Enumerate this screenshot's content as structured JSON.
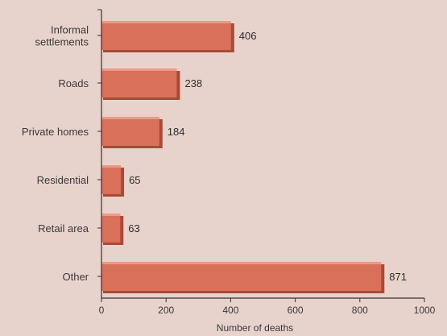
{
  "chart_data": {
    "type": "bar",
    "orientation": "horizontal",
    "categories": [
      "Informal settlements",
      "Roads",
      "Private homes",
      "Residential",
      "Retail area",
      "Other"
    ],
    "category_lines": [
      [
        "Informal",
        "settlements"
      ],
      [
        "Roads"
      ],
      [
        "Private homes"
      ],
      [
        "Residential"
      ],
      [
        "Retail area"
      ],
      [
        "Other"
      ]
    ],
    "values": [
      406,
      238,
      184,
      65,
      63,
      871
    ],
    "value_labels": [
      "406",
      "238",
      "184",
      "65",
      "63",
      "871"
    ],
    "xlabel": "Number of deaths",
    "ylabel": "",
    "xlim": [
      0,
      1000
    ],
    "xticks": [
      0,
      200,
      400,
      600,
      800,
      1000
    ],
    "grid": false,
    "colors": {
      "background": "#e8d2cc",
      "bar": "#d9705a",
      "bar_shade": "#a84a38",
      "bar_highlight": "#ec9a86",
      "axis": "#333333"
    }
  }
}
